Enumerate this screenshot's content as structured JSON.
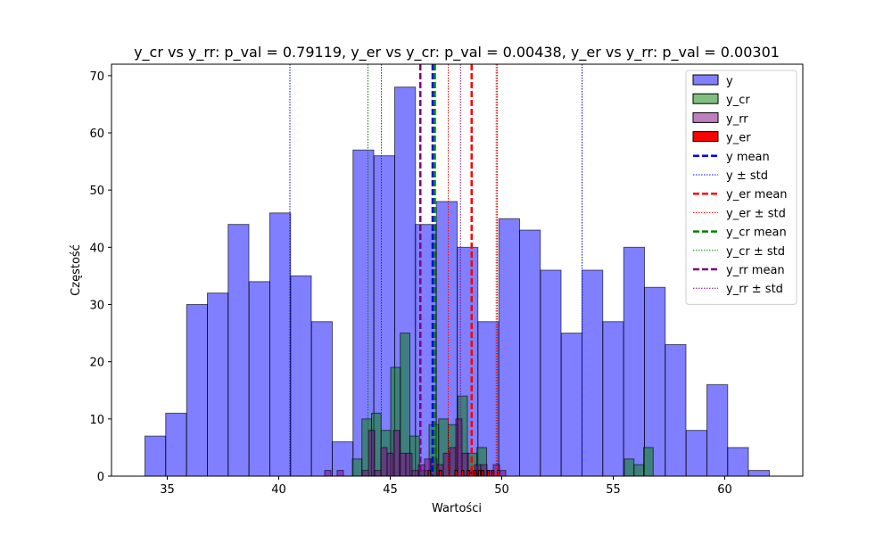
{
  "chart_data": {
    "type": "histogram",
    "title": "y_cr vs y_rr: p_val = 0.79119, y_er vs y_cr: p_val = 0.00438, y_er vs y_rr: p_val = 0.00301",
    "xlabel": "Wartości",
    "ylabel": "Częstość",
    "xlim": [
      32.5,
      63.5
    ],
    "ylim": [
      0,
      72
    ],
    "xticks": [
      35,
      40,
      45,
      50,
      55,
      60
    ],
    "yticks": [
      0,
      10,
      20,
      30,
      40,
      50,
      60,
      70
    ],
    "legend_position": "upper right",
    "histograms": [
      {
        "name": "y",
        "color": "#0000ff",
        "opacity": 0.5,
        "bin_width": 0.93,
        "bin_starts": [
          34.0,
          34.93,
          35.87,
          36.8,
          37.73,
          38.67,
          39.6,
          40.53,
          41.47,
          42.4,
          43.33,
          44.27,
          45.2,
          46.13,
          47.07,
          48.0,
          48.93,
          49.87,
          50.8,
          51.73,
          52.67,
          53.6,
          54.53,
          55.47,
          56.4,
          57.33,
          58.27,
          59.2,
          60.13,
          61.07
        ],
        "counts": [
          7,
          11,
          30,
          32,
          44,
          34,
          46,
          35,
          27,
          6,
          57,
          56,
          68,
          44,
          48,
          40,
          27,
          45,
          43,
          36,
          25,
          36,
          27,
          40,
          33,
          23,
          8,
          16,
          5,
          1
        ]
      },
      {
        "name": "y_cr",
        "color": "#008000",
        "opacity": 0.5,
        "bin_width": 0.43,
        "bin_starts": [
          43.3,
          43.73,
          44.16,
          44.59,
          45.02,
          45.45,
          45.88,
          46.31,
          46.74,
          47.17,
          47.6,
          48.03,
          48.46,
          48.89,
          49.32,
          55.5,
          55.93,
          56.36
        ],
        "counts": [
          3,
          10,
          11,
          8,
          19,
          25,
          7,
          1,
          9,
          10,
          9,
          14,
          4,
          5,
          0,
          3,
          2,
          5
        ]
      },
      {
        "name": "y_rr",
        "color": "#800080",
        "opacity": 0.5,
        "bin_width": 0.28,
        "bin_starts": [
          42.06,
          42.62,
          43.74,
          44.02,
          44.3,
          44.58,
          44.86,
          45.14,
          45.42,
          45.7,
          45.98,
          46.26,
          46.54,
          46.82,
          47.1,
          47.38,
          47.66,
          47.94,
          48.22,
          48.5,
          48.78,
          49.06,
          49.34,
          49.62,
          49.9
        ],
        "counts": [
          1,
          1,
          1,
          8,
          1,
          5,
          4,
          8,
          4,
          4,
          1,
          2,
          3,
          3,
          2,
          4,
          5,
          10,
          4,
          1,
          2,
          2,
          1,
          2,
          1
        ]
      },
      {
        "name": "y_er",
        "color": "#ff0000",
        "opacity": 1.0,
        "bin_width": 0.1,
        "bin_starts": [
          46.7,
          47.2,
          47.9,
          48.2,
          48.45,
          48.62,
          48.75,
          48.95,
          49.1,
          49.35,
          49.55,
          49.8
        ],
        "counts": [
          1,
          1,
          1,
          1,
          1,
          1,
          1,
          1,
          1,
          1,
          1,
          1
        ]
      }
    ],
    "vertical_lines": [
      {
        "name": "y mean",
        "x": 46.9,
        "color": "#0000ff",
        "style": "dashed"
      },
      {
        "name": "y ± std",
        "x": [
          40.5,
          53.6
        ],
        "color": "#0000ff",
        "style": "dotted"
      },
      {
        "name": "y_er mean",
        "x": 48.65,
        "color": "#ff0000",
        "style": "dashed"
      },
      {
        "name": "y_er ± std",
        "x": [
          47.6,
          49.75
        ],
        "color": "#ff0000",
        "style": "dotted"
      },
      {
        "name": "y_cr mean",
        "x": 47.0,
        "color": "#008000",
        "style": "dashed"
      },
      {
        "name": "y_cr ± std",
        "x": [
          44.0,
          49.8
        ],
        "color": "#008000",
        "style": "dotted"
      },
      {
        "name": "y_rr mean",
        "x": 46.35,
        "color": "#800080",
        "style": "dashed"
      },
      {
        "name": "y_rr ± std",
        "x": [
          44.6,
          48.15
        ],
        "color": "#800080",
        "style": "dotted"
      }
    ],
    "legend_entries": [
      {
        "label": "y",
        "kind": "patch",
        "color": "#0000ff",
        "opacity": 0.5
      },
      {
        "label": "y_cr",
        "kind": "patch",
        "color": "#008000",
        "opacity": 0.5
      },
      {
        "label": "y_rr",
        "kind": "patch",
        "color": "#800080",
        "opacity": 0.5
      },
      {
        "label": "y_er",
        "kind": "patch",
        "color": "#ff0000",
        "opacity": 1.0
      },
      {
        "label": "y mean",
        "kind": "dashed",
        "color": "#0000ff"
      },
      {
        "label": "y ± std",
        "kind": "dotted",
        "color": "#0000ff"
      },
      {
        "label": "y_er mean",
        "kind": "dashed",
        "color": "#ff0000"
      },
      {
        "label": "y_er ± std",
        "kind": "dotted",
        "color": "#ff0000"
      },
      {
        "label": "y_cr mean",
        "kind": "dashed",
        "color": "#008000"
      },
      {
        "label": "y_cr ± std",
        "kind": "dotted",
        "color": "#008000"
      },
      {
        "label": "y_rr mean",
        "kind": "dashed",
        "color": "#800080"
      },
      {
        "label": "y_rr ± std",
        "kind": "dotted",
        "color": "#800080"
      }
    ]
  }
}
